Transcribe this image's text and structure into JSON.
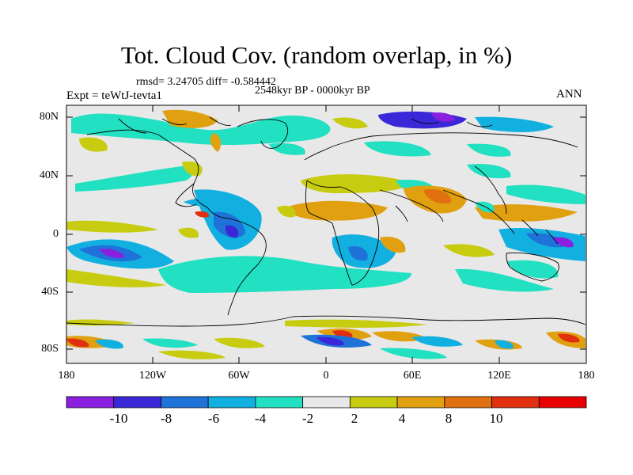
{
  "title": "Tot. Cloud Cov. (random overlap, in %)",
  "stats": "rmsd= 3.24705 diff= -0.584442",
  "period": "2548kyr BP - 0000kyr BP",
  "experiment": "Expt = teWtJ-tevta1",
  "season": "ANN",
  "y_ticks": [
    "80N",
    "40N",
    "0",
    "40S",
    "80S"
  ],
  "x_ticks": [
    "180",
    "120W",
    "60W",
    "0",
    "60E",
    "120E",
    "180"
  ],
  "colorbar": {
    "labels": [
      "-10",
      "-8",
      "-6",
      "-4",
      "-2",
      "2",
      "4",
      "8",
      "10"
    ],
    "colors": [
      "#8a1fe0",
      "#3a28d8",
      "#1f72d8",
      "#12b0e0",
      "#22e0c2",
      "#e8e8e8",
      "#c8cc10",
      "#e0a010",
      "#e07010",
      "#e03010",
      "#e80000"
    ]
  }
}
